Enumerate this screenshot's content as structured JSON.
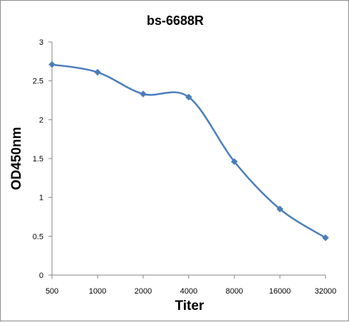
{
  "chart_data": {
    "type": "line",
    "title": "bs-6688R",
    "xlabel": "Titer",
    "ylabel": "OD450nm",
    "categories": [
      "500",
      "1000",
      "2000",
      "4000",
      "8000",
      "16000",
      "32000"
    ],
    "series": [
      {
        "values": [
          2.71,
          2.61,
          2.33,
          2.29,
          1.46,
          0.85,
          0.48
        ]
      }
    ],
    "ylim": [
      0,
      3
    ],
    "yticks": [
      0,
      0.5,
      1,
      1.5,
      2,
      2.5,
      3
    ],
    "ytick_labels": [
      "0",
      "0.5",
      "1",
      "1.5",
      "2",
      "2.5",
      "3"
    ],
    "grid": false,
    "legend": "none",
    "line_style": "smooth",
    "marker": "diamond",
    "colors": {
      "series": "#4a7ebb",
      "axis": "#868686"
    }
  }
}
